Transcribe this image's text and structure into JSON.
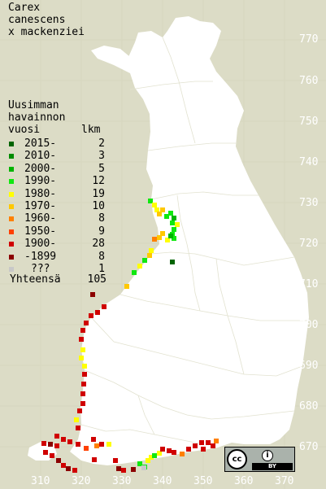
{
  "species": {
    "line1": "Carex",
    "line2": "canescens",
    "line3": "x mackenziei"
  },
  "legend": {
    "heading1": "Uusimman",
    "heading2": "havainnon",
    "year_col": "vuosi",
    "count_col": "lkm",
    "rows": [
      {
        "label": "2015-",
        "count": "2",
        "color": "#006400"
      },
      {
        "label": "2010-",
        "count": "3",
        "color": "#008c00"
      },
      {
        "label": "2000-",
        "count": "5",
        "color": "#00b400"
      },
      {
        "label": "1990-",
        "count": "12",
        "color": "#10e810"
      },
      {
        "label": "1980-",
        "count": "19",
        "color": "#ffff00"
      },
      {
        "label": "1970-",
        "count": "10",
        "color": "#ffc800"
      },
      {
        "label": "1960-",
        "count": "8",
        "color": "#ff8000"
      },
      {
        "label": "1950-",
        "count": "9",
        "color": "#ff4000"
      },
      {
        "label": "1900-",
        "count": "28",
        "color": "#d00000"
      },
      {
        "label": "-1899",
        "count": "8",
        "color": "#8b0000"
      },
      {
        "label": "???",
        "count": "1",
        "color": "#c8c8c8"
      }
    ],
    "total_label": "Yhteensä",
    "total_count": "105"
  },
  "grid": {
    "y_ticks": [
      "770",
      "760",
      "750",
      "740",
      "730",
      "720",
      "710",
      "700",
      "690",
      "680",
      "670"
    ],
    "x_ticks": [
      "310",
      "320",
      "330",
      "340",
      "350",
      "360",
      "370"
    ]
  },
  "license": {
    "cc": "cc",
    "by_text": "BY",
    "by_symbol": "i"
  }
}
